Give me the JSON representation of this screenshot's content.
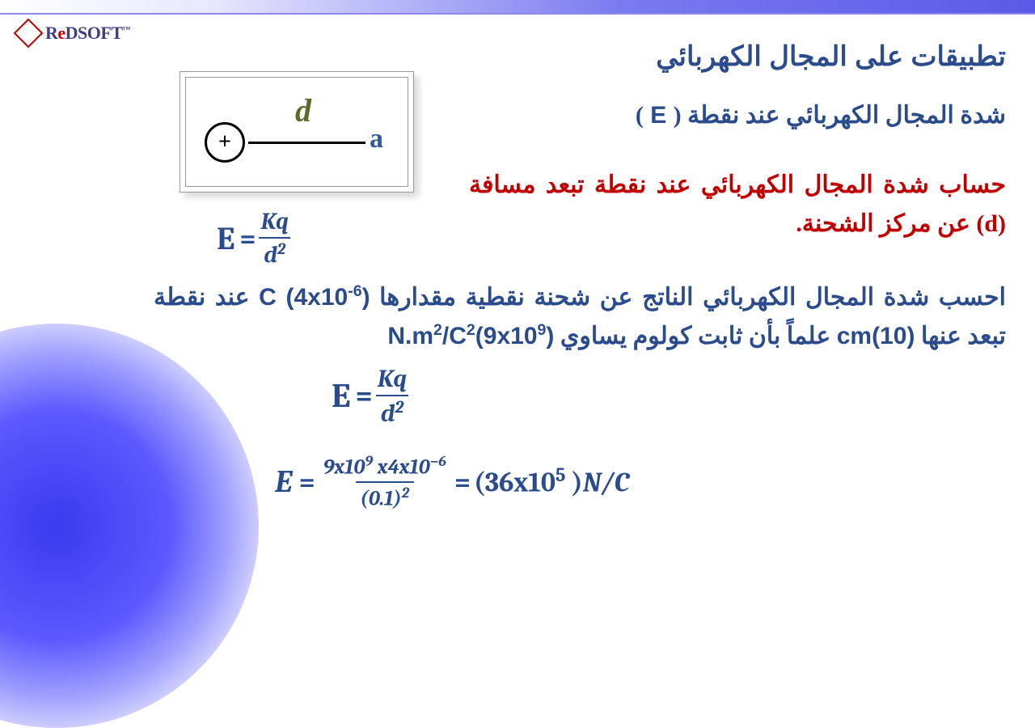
{
  "logo": {
    "text_prefix": "R",
    "text_e": "e",
    "text_suffix": "DSOFT",
    "tm": "™"
  },
  "title": "تطبيقات على المجال الكهربائي",
  "diagram": {
    "charge_sign": "+",
    "distance_label": "d",
    "point_label": "a"
  },
  "subtitle1_pre": "شدة المجال الكهربائي عند نقطة",
  "subtitle1_paren_open": "(",
  "subtitle1_E": " E ",
  "subtitle1_paren_close": ")",
  "subtitle2_pre": "حساب شدة المجال الكهربائي عند نقطة تبعد مسافة ",
  "subtitle2_paren_open": "(",
  "subtitle2_d": "d",
  "subtitle2_paren_close": ")",
  "subtitle2_post": " عن مركز الشحنة.",
  "formula1": {
    "lhs": "E",
    "eq": "=",
    "num": "Kq",
    "den_base": "d",
    "den_exp": "2"
  },
  "problem": {
    "p1": "احسب شدة المجال الكهربائي الناتج عن شحنة نقطية مقدارها ",
    "c_unit": "C",
    "val1_open": "(",
    "val1_base": "4x10",
    "val1_exp": "-6",
    "val1_close": ")",
    "p2": " عند نقطة تبعد عنها ",
    "dist_unit": "cm",
    "dist_val": "(10)",
    "p3": " علماً بأن ثابت كولوم يساوي ",
    "k_unit_base": "N.m",
    "k_unit_exp1": "2",
    "k_unit_slash": "/C",
    "k_unit_exp2": "2",
    "kval_open": "(",
    "kval_base": "9x10",
    "kval_exp": "9",
    "kval_close": ")"
  },
  "formula3": {
    "lhs": "E",
    "eq": "=",
    "num_a": "9x10",
    "num_a_exp": "9",
    "num_mid": " x4x10",
    "num_b_exp": "−6",
    "den_a": "(0.1)",
    "den_exp": "2",
    "eq2": "=",
    "res_open": "(",
    "res_base": "36x10",
    "res_exp": "5",
    "res_close": " )",
    "unit": "N/C"
  },
  "colors": {
    "title": "#2b4c8c",
    "red": "#c00000",
    "olive": "#5a6a2a",
    "blue_a": "#335a9a"
  }
}
